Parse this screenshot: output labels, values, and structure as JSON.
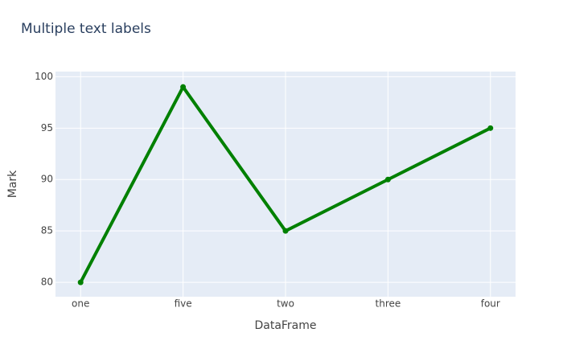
{
  "chart_data": {
    "type": "line",
    "title": "Multiple text labels",
    "x_label": "DataFrame",
    "y_label": "Mark",
    "categories": [
      "one",
      "five",
      "two",
      "three",
      "four"
    ],
    "values": [
      80,
      99,
      85,
      90,
      95
    ],
    "color": "#008000",
    "ylim": [
      78.6,
      100.5
    ],
    "yticks": [
      80,
      85,
      90,
      95,
      100
    ],
    "grid": true
  }
}
